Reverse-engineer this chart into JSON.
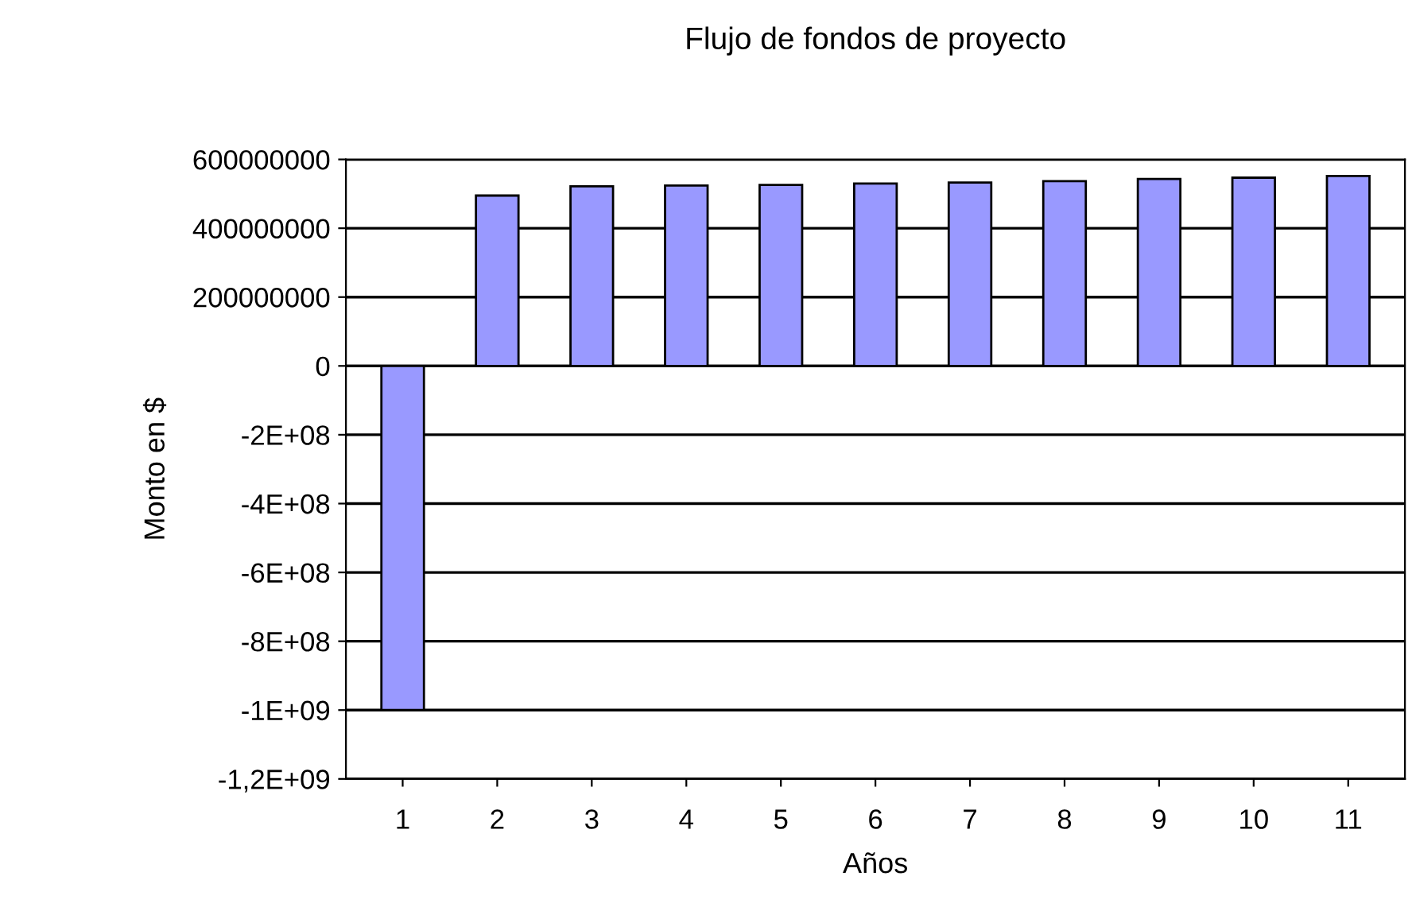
{
  "chart_data": {
    "type": "bar",
    "title": "Flujo de fondos de proyecto",
    "xlabel": "Años",
    "ylabel": "Monto en $",
    "categories": [
      "1",
      "2",
      "3",
      "4",
      "5",
      "6",
      "7",
      "8",
      "9",
      "10",
      "11"
    ],
    "values": [
      -1000000000,
      495000000,
      522000000,
      524000000,
      526000000,
      530000000,
      533000000,
      537000000,
      543000000,
      547000000,
      552000000
    ],
    "color": "#9999ff",
    "ylim": [
      -1200000000,
      600000000
    ],
    "yticks": [
      {
        "value": 600000000,
        "label": "600000000"
      },
      {
        "value": 400000000,
        "label": "400000000"
      },
      {
        "value": 200000000,
        "label": "200000000"
      },
      {
        "value": 0,
        "label": "0"
      },
      {
        "value": -200000000,
        "label": "-2E+08"
      },
      {
        "value": -400000000,
        "label": "-4E+08"
      },
      {
        "value": -600000000,
        "label": "-6E+08"
      },
      {
        "value": -800000000,
        "label": "-8E+08"
      },
      {
        "value": -1000000000,
        "label": "-1E+09"
      },
      {
        "value": -1200000000,
        "label": "-1,2E+09"
      }
    ],
    "grid": "y",
    "legend": false
  }
}
